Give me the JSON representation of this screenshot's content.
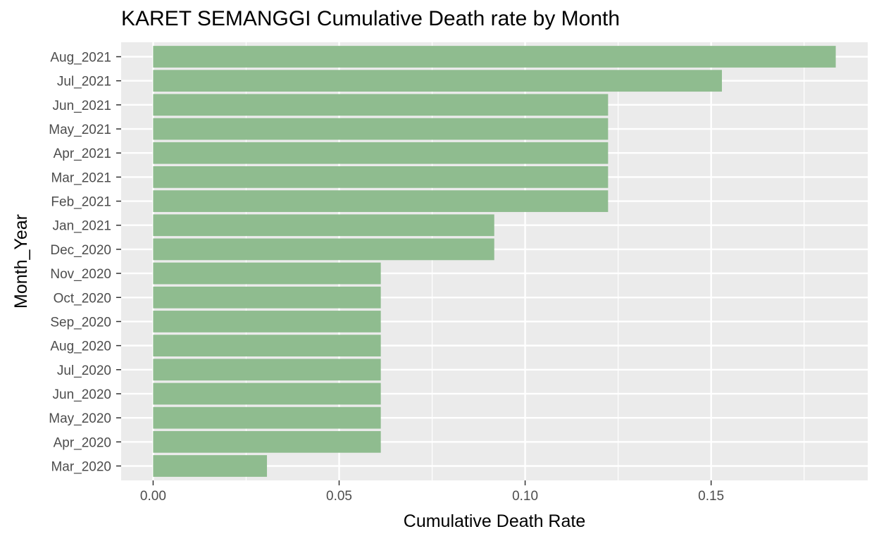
{
  "chart_data": {
    "type": "bar",
    "orientation": "horizontal",
    "title": "KARET SEMANGGI Cumulative Death rate by Month",
    "xlabel": "Cumulative Death Rate",
    "ylabel": "Month_Year",
    "categories": [
      "Mar_2020",
      "Apr_2020",
      "May_2020",
      "Jun_2020",
      "Jul_2020",
      "Aug_2020",
      "Sep_2020",
      "Oct_2020",
      "Nov_2020",
      "Dec_2020",
      "Jan_2021",
      "Feb_2021",
      "Mar_2021",
      "Apr_2021",
      "May_2021",
      "Jun_2021",
      "Jul_2021",
      "Aug_2021"
    ],
    "values": [
      0.0306,
      0.0612,
      0.0612,
      0.0612,
      0.0612,
      0.0612,
      0.0612,
      0.0612,
      0.0612,
      0.0917,
      0.0917,
      0.1223,
      0.1223,
      0.1223,
      0.1223,
      0.1223,
      0.1529,
      0.1835
    ],
    "xlim": [
      -0.0086,
      0.1921
    ],
    "x_ticks": [
      0,
      0.05,
      0.1,
      0.15
    ],
    "x_tick_labels": [
      "0.00",
      "0.05",
      "0.10",
      "0.15"
    ],
    "bar_color": "#8fbc8f",
    "panel_background": "#ebebeb",
    "grid": true,
    "legend": "none"
  }
}
